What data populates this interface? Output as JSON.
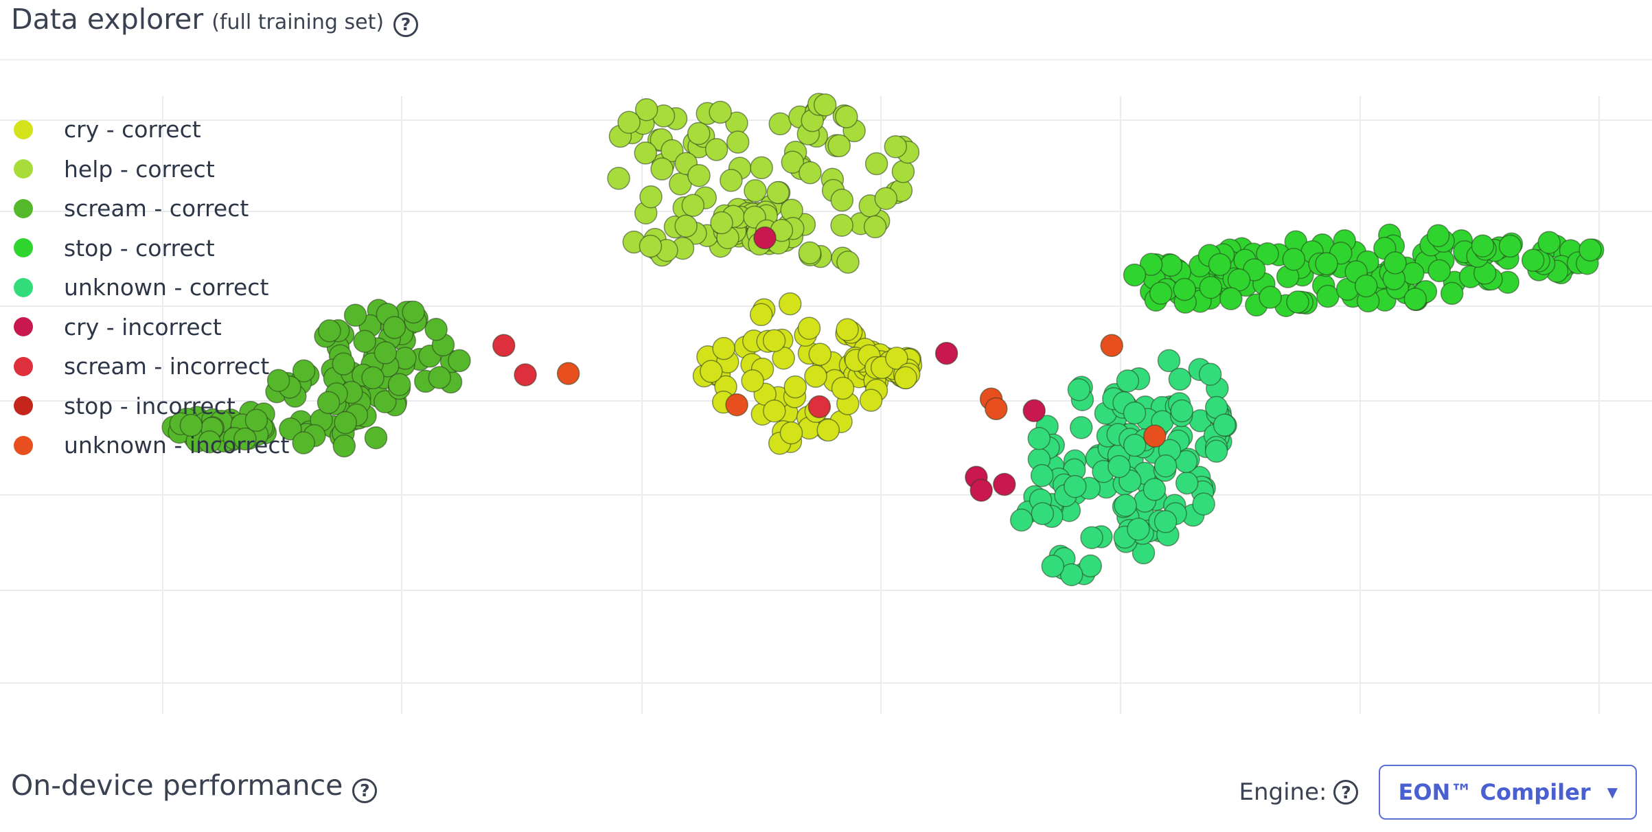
{
  "explorer": {
    "title": "Data explorer",
    "subtitle": "(full training set)",
    "help_icon": "question-circle-icon"
  },
  "legend": [
    {
      "label": "cry - correct",
      "color": "#d4e21a"
    },
    {
      "label": "help - correct",
      "color": "#a7dc3a"
    },
    {
      "label": "scream - correct",
      "color": "#55b82a"
    },
    {
      "label": "stop - correct",
      "color": "#2fd42f"
    },
    {
      "label": "unknown - correct",
      "color": "#33dc7a"
    },
    {
      "label": "cry - incorrect",
      "color": "#c8184f"
    },
    {
      "label": "scream - incorrect",
      "color": "#de2f3c"
    },
    {
      "label": "stop - incorrect",
      "color": "#c4261c"
    },
    {
      "label": "unknown - incorrect",
      "color": "#e84f1e"
    }
  ],
  "chart_data": {
    "type": "scatter",
    "xlim": [
      0,
      100
    ],
    "ylim": [
      0,
      100
    ],
    "grid": true,
    "legend_position": "top-left",
    "clusters": [
      {
        "series": "help - correct",
        "center": [
          46,
          78
        ],
        "count": 140
      },
      {
        "series": "scream - correct",
        "center": [
          22,
          50
        ],
        "count": 140
      },
      {
        "series": "cry - correct",
        "center": [
          48,
          52
        ],
        "count": 120
      },
      {
        "series": "stop - correct",
        "center": [
          82,
          68
        ],
        "count": 150
      },
      {
        "series": "unknown - correct",
        "center": [
          68,
          38
        ],
        "count": 140
      }
    ],
    "points": [
      {
        "series": "cry - incorrect",
        "x": 46.3,
        "y": 73.0
      },
      {
        "series": "scream - incorrect",
        "x": 30.5,
        "y": 56.5
      },
      {
        "series": "scream - incorrect",
        "x": 31.8,
        "y": 52.0
      },
      {
        "series": "unknown - incorrect",
        "x": 34.4,
        "y": 52.2
      },
      {
        "series": "cry - incorrect",
        "x": 57.3,
        "y": 55.3
      },
      {
        "series": "unknown - incorrect",
        "x": 44.6,
        "y": 47.4
      },
      {
        "series": "scream - incorrect",
        "x": 49.6,
        "y": 47.1
      },
      {
        "series": "unknown - incorrect",
        "x": 67.3,
        "y": 56.5
      },
      {
        "series": "unknown - incorrect",
        "x": 60.0,
        "y": 48.3
      },
      {
        "series": "unknown - incorrect",
        "x": 60.3,
        "y": 46.8
      },
      {
        "series": "cry - incorrect",
        "x": 62.6,
        "y": 46.5
      },
      {
        "series": "unknown - incorrect",
        "x": 69.9,
        "y": 42.6
      },
      {
        "series": "cry - incorrect",
        "x": 59.1,
        "y": 36.3
      },
      {
        "series": "cry - incorrect",
        "x": 59.4,
        "y": 34.3
      },
      {
        "series": "cry - incorrect",
        "x": 60.8,
        "y": 35.2
      }
    ]
  },
  "performance": {
    "title": "On-device performance",
    "help_icon": "question-circle-icon",
    "engine_label": "Engine:",
    "engine_value": "EON™ Compiler"
  }
}
